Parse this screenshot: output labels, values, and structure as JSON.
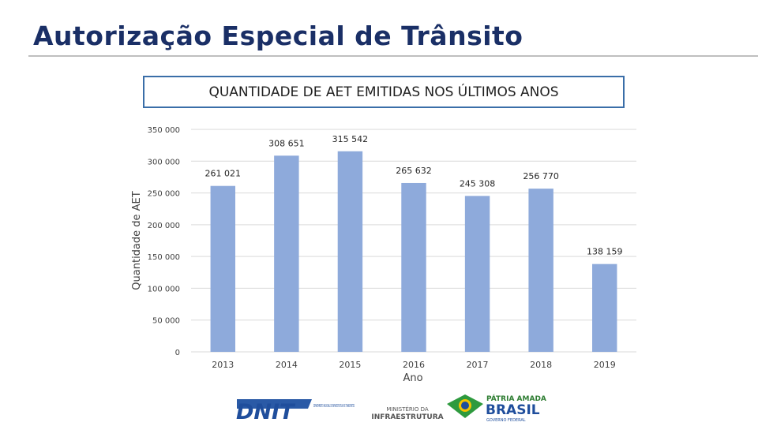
{
  "page": {
    "title": "Autorização Especial de Trânsito"
  },
  "chart_data": {
    "type": "bar",
    "title": "QUANTIDADE DE AET EMITIDAS NOS ÚLTIMOS ANOS",
    "xlabel": "Ano",
    "ylabel": "Quantidade de AET",
    "categories": [
      "2013",
      "2014",
      "2015",
      "2016",
      "2017",
      "2018",
      "2019"
    ],
    "values": [
      261021,
      308651,
      315542,
      265632,
      245308,
      256770,
      138159
    ],
    "value_labels": [
      "261 021",
      "308 651",
      "315 542",
      "265 632",
      "245 308",
      "256 770",
      "138 159"
    ],
    "ylim": [
      0,
      350000
    ],
    "yticks": [
      0,
      50000,
      100000,
      150000,
      200000,
      250000,
      300000,
      350000
    ],
    "ytick_labels": [
      "0",
      "50 000",
      "100 000",
      "150 000",
      "200 000",
      "250 000",
      "300 000",
      "350 000"
    ],
    "grid": true,
    "bar_color": "#8eaadb",
    "grid_color": "#d9d9d9"
  },
  "logos": {
    "dnit": {
      "name": "DNIT",
      "subtext": "DEPARTAMENTO NACIONAL DE INFRAESTRUTURA DE TRANSPORTES"
    },
    "ministerio": {
      "line1": "MINISTÉRIO DA",
      "line2": "INFRAESTRUTURA"
    },
    "brasil": {
      "line1": "PÁTRIA AMADA",
      "line2": "BRASIL",
      "line3": "GOVERNO FEDERAL"
    }
  }
}
